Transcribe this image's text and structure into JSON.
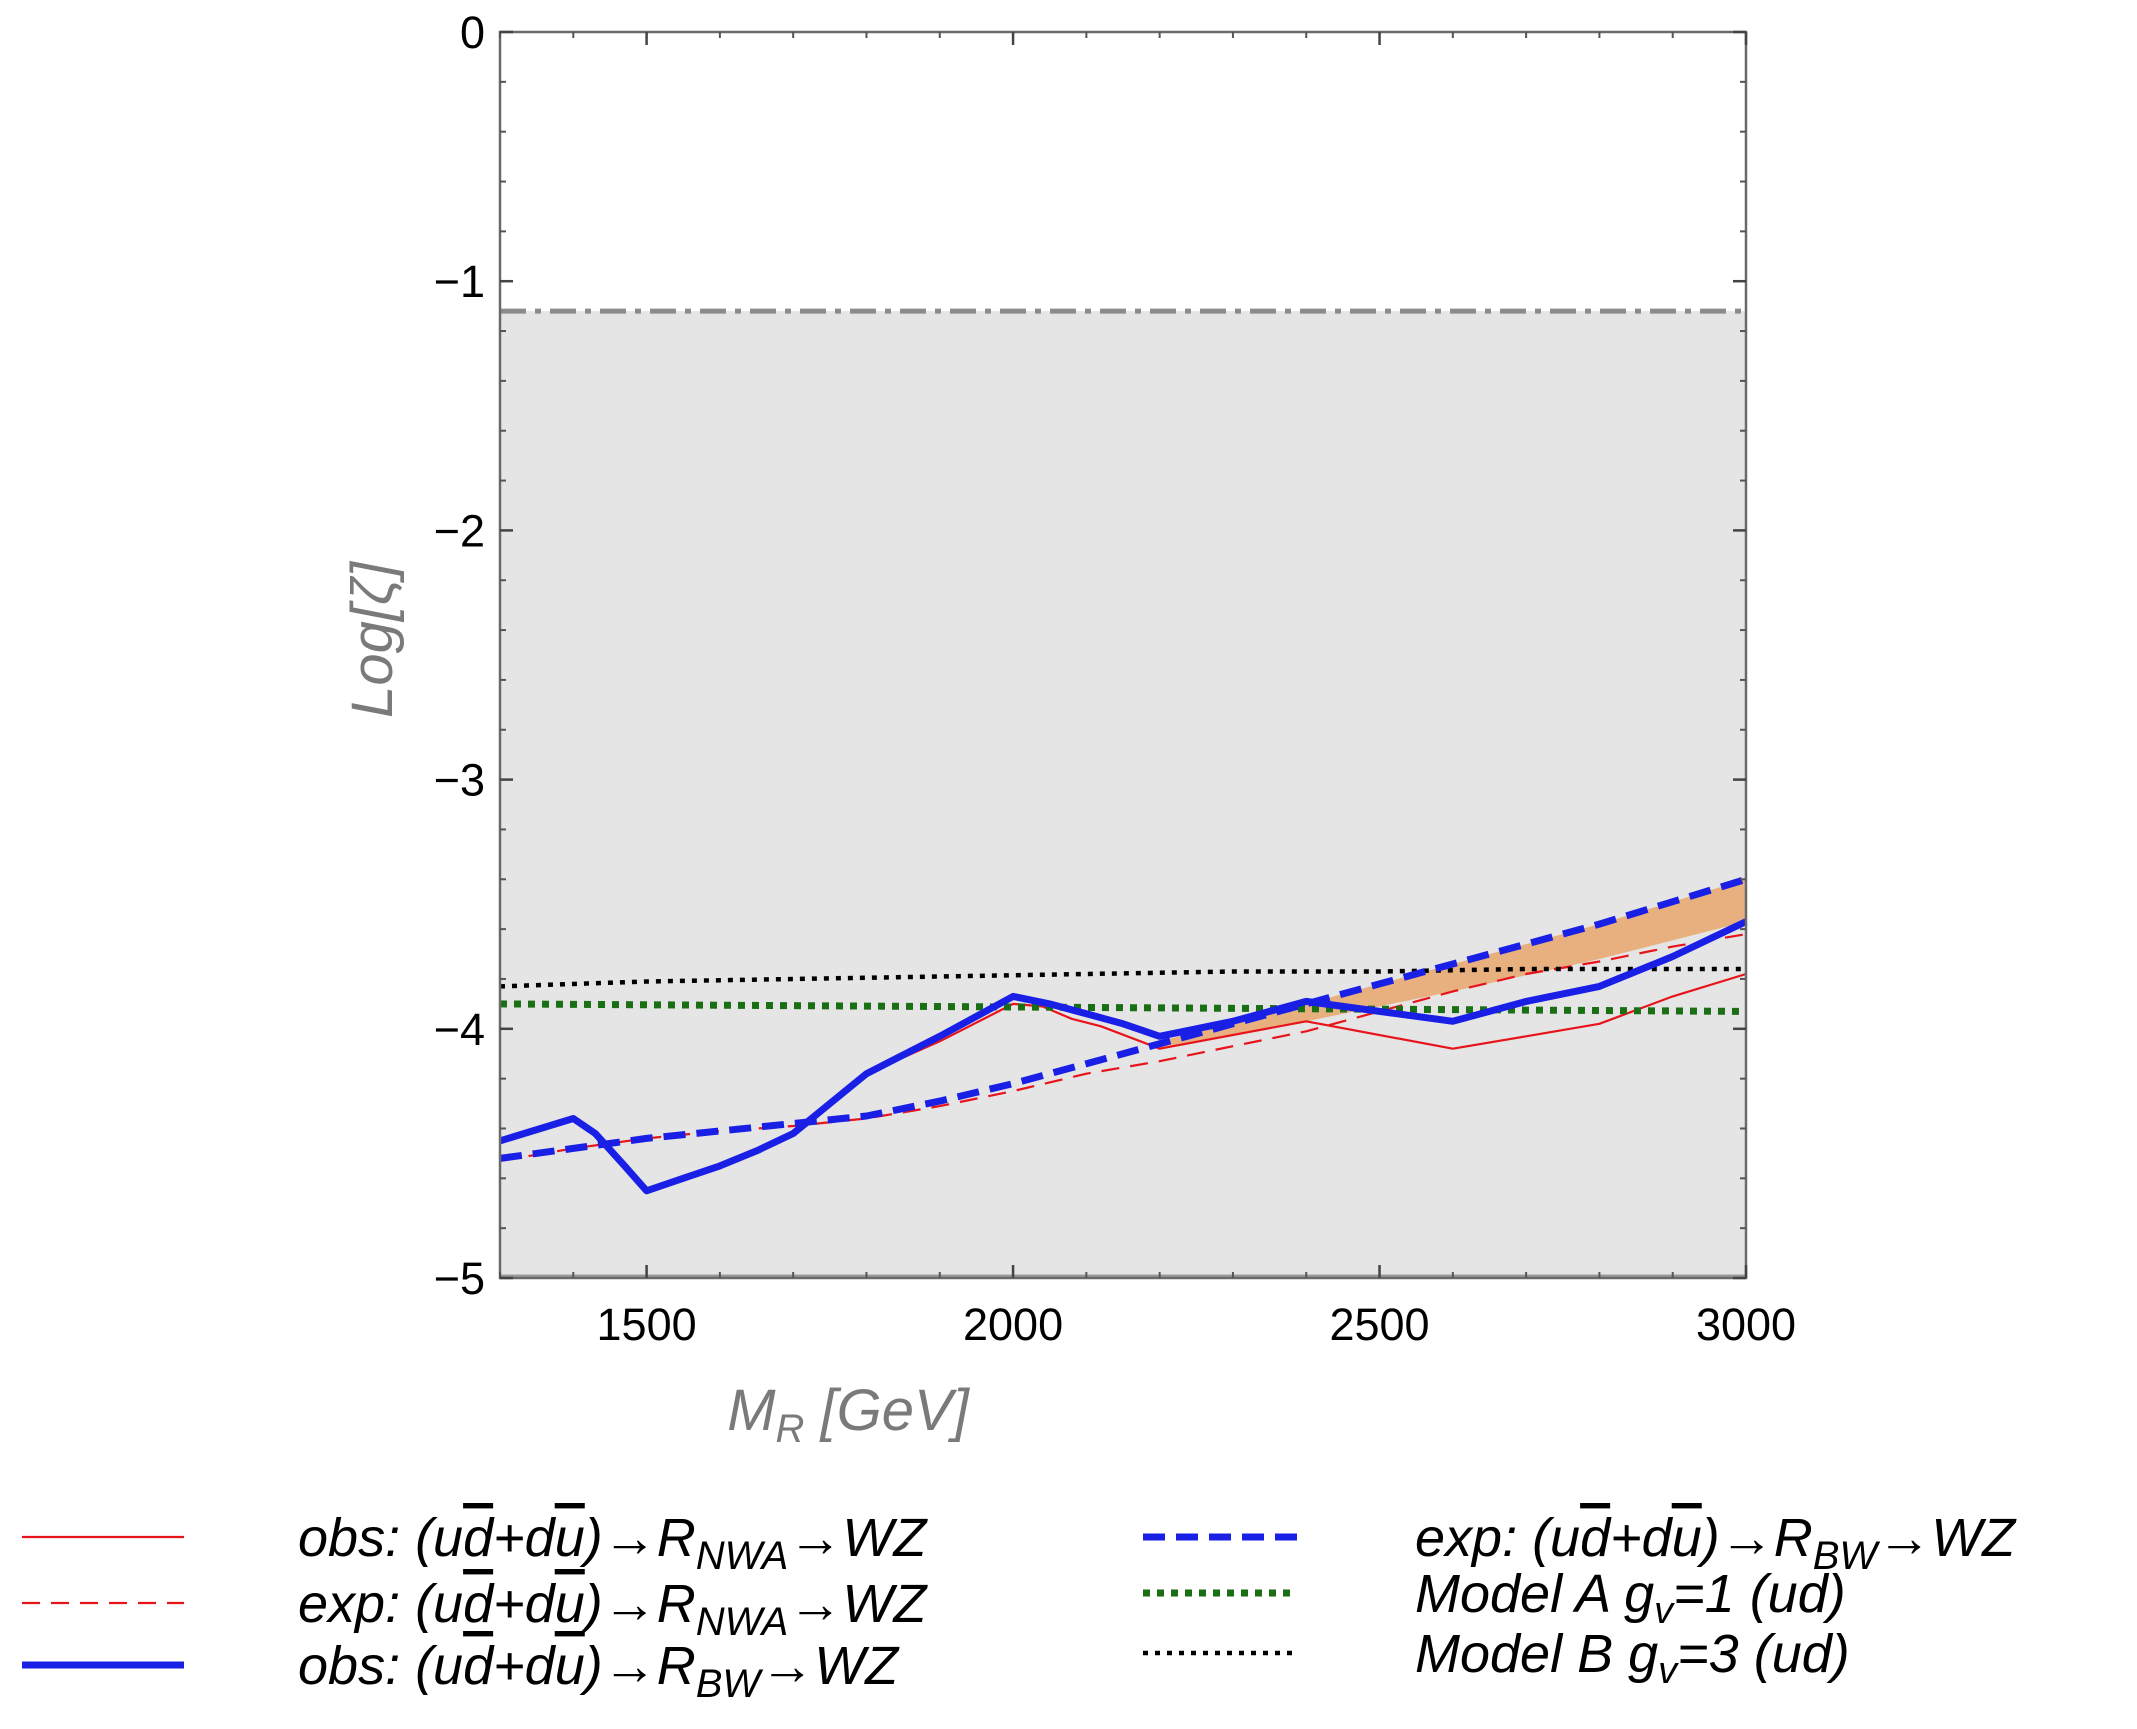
{
  "chart_data": {
    "type": "line",
    "title": "",
    "xlabel": {
      "main": "M",
      "sub": "R",
      "unit": " [GeV]"
    },
    "ylabel": "Log[ζ]",
    "xlim": [
      1300,
      3000
    ],
    "ylim": [
      -5,
      0
    ],
    "xticks": [
      1500,
      2000,
      2500,
      3000
    ],
    "xtick_labels": [
      "1500",
      "2000",
      "2500",
      "3000"
    ],
    "yticks": [
      0,
      -1,
      -2,
      -3,
      -4,
      -5
    ],
    "ytick_labels": [
      "0",
      "−1",
      "−2",
      "−3",
      "−4",
      "−5"
    ],
    "excluded_region": {
      "y_from": -5,
      "y_to": -1.12,
      "color": "#e5e5e5"
    },
    "reference_line": {
      "y": -1.12,
      "color": "#8c8c8c",
      "style": "dash-dot"
    },
    "band": {
      "color": "#e9b07f",
      "x": [
        2200,
        2400,
        2600,
        2800,
        3000
      ],
      "lower": [
        -4.08,
        -3.97,
        -3.85,
        -3.72,
        -3.57
      ],
      "upper": [
        -4.05,
        -3.9,
        -3.74,
        -3.58,
        -3.4
      ]
    },
    "series": [
      {
        "name": "obs NWA",
        "color": "#e8141b",
        "style": "solid-thin",
        "x": [
          1800,
          1900,
          2000,
          2040,
          2080,
          2120,
          2200,
          2400,
          2600,
          2700,
          2800,
          2900,
          3000
        ],
        "y": [
          -4.18,
          -4.05,
          -3.9,
          -3.91,
          -3.96,
          -3.99,
          -4.08,
          -3.97,
          -4.08,
          -4.03,
          -3.98,
          -3.87,
          -3.78
        ]
      },
      {
        "name": "exp NWA",
        "color": "#e8141b",
        "style": "dashed-thin",
        "x": [
          1300,
          1400,
          1500,
          1600,
          1700,
          1800,
          1900,
          2000,
          2100,
          2200,
          2300,
          2400,
          2500,
          2600,
          2700,
          2800,
          2900,
          3000
        ],
        "y": [
          -4.53,
          -4.48,
          -4.44,
          -4.41,
          -4.39,
          -4.36,
          -4.31,
          -4.25,
          -4.18,
          -4.13,
          -4.07,
          -4.01,
          -3.93,
          -3.85,
          -3.78,
          -3.73,
          -3.67,
          -3.62
        ]
      },
      {
        "name": "obs BW",
        "color": "#1a1fe6",
        "style": "solid-thick",
        "x": [
          1300,
          1400,
          1430,
          1470,
          1500,
          1550,
          1600,
          1650,
          1700,
          1800,
          1900,
          2000,
          2050,
          2100,
          2150,
          2200,
          2300,
          2400,
          2500,
          2600,
          2700,
          2800,
          2900,
          3000
        ],
        "y": [
          -4.45,
          -4.36,
          -4.42,
          -4.55,
          -4.65,
          -4.6,
          -4.55,
          -4.49,
          -4.42,
          -4.18,
          -4.03,
          -3.87,
          -3.9,
          -3.94,
          -3.98,
          -4.03,
          -3.97,
          -3.89,
          -3.93,
          -3.97,
          -3.89,
          -3.83,
          -3.71,
          -3.57
        ]
      },
      {
        "name": "exp BW",
        "color": "#1a1fe6",
        "style": "dashed-thick",
        "x": [
          1300,
          1400,
          1500,
          1600,
          1700,
          1800,
          1900,
          2000,
          2100,
          2200,
          2300,
          2400,
          2500,
          2600,
          2700,
          2800,
          2900,
          3000
        ],
        "y": [
          -4.52,
          -4.48,
          -4.44,
          -4.41,
          -4.38,
          -4.35,
          -4.29,
          -4.22,
          -4.14,
          -4.06,
          -3.98,
          -3.9,
          -3.82,
          -3.74,
          -3.66,
          -3.58,
          -3.49,
          -3.4
        ]
      },
      {
        "name": "Model A",
        "color": "#1a6e14",
        "style": "dotted-thick",
        "x": [
          1300,
          3000
        ],
        "y": [
          -3.9,
          -3.93
        ]
      },
      {
        "name": "Model B",
        "color": "#000000",
        "style": "dotted",
        "x": [
          1300,
          1500,
          1700,
          1900,
          2100,
          2300,
          2500,
          2700,
          2900,
          3000
        ],
        "y": [
          -3.83,
          -3.81,
          -3.8,
          -3.79,
          -3.78,
          -3.77,
          -3.77,
          -3.76,
          -3.76,
          -3.76
        ]
      }
    ],
    "legend": [
      {
        "style": "solid-thin",
        "color": "#e8141b",
        "parts": [
          "obs: (u",
          "d",
          "+d",
          "u",
          ")→R",
          "NWA",
          "→WZ"
        ]
      },
      {
        "style": "dashed-thin",
        "color": "#e8141b",
        "parts": [
          "exp: (u",
          "d",
          "+d",
          "u",
          ")→R",
          "NWA",
          "→WZ"
        ]
      },
      {
        "style": "solid-thick",
        "color": "#1a1fe6",
        "parts": [
          "obs: (u",
          "d",
          "+d",
          "u",
          ")→R",
          "BW",
          "→WZ"
        ]
      },
      {
        "style": "dashed-thick",
        "color": "#1a1fe6",
        "parts": [
          "exp: (u",
          "d",
          "+d",
          "u",
          ")→R",
          "BW",
          "→WZ"
        ]
      },
      {
        "style": "dotted-thick",
        "color": "#1a6e14",
        "parts": [
          "Model A g",
          "v",
          "=1 (ud)"
        ]
      },
      {
        "style": "dotted",
        "color": "#000000",
        "parts": [
          "Model B g",
          "v",
          "=3 (ud)"
        ]
      }
    ]
  }
}
